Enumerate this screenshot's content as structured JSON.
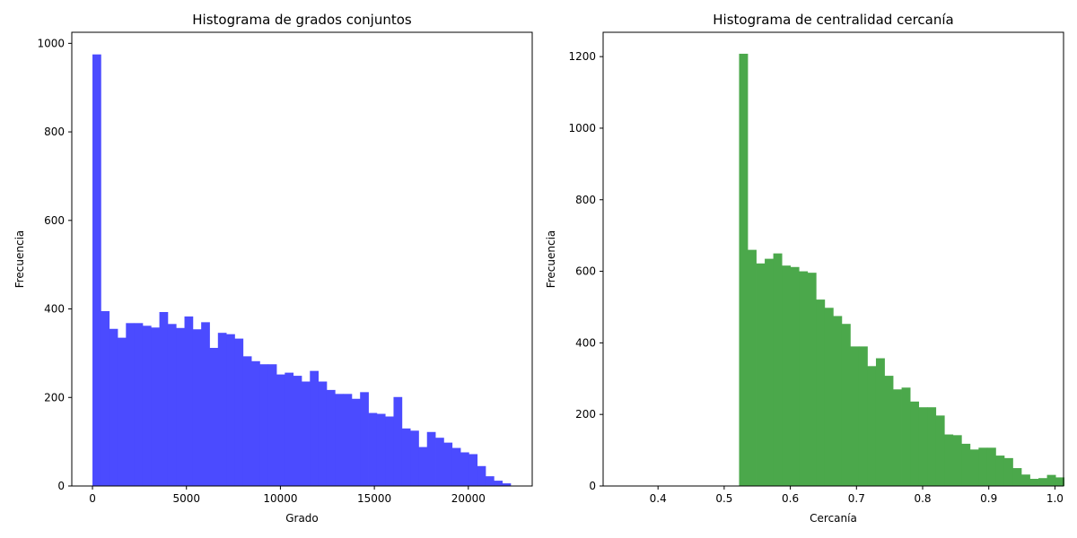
{
  "chart_data": [
    {
      "type": "bar",
      "title": "Histograma de grados conjuntos",
      "xlabel": "Grado",
      "ylabel": "Frecuencia",
      "color": "#4b4bff",
      "xlim": [
        -1100,
        23400
      ],
      "ylim": [
        0,
        1025
      ],
      "xticks": [
        0,
        5000,
        10000,
        15000,
        20000
      ],
      "yticks": [
        0,
        200,
        400,
        600,
        800,
        1000
      ],
      "bin_start": 0,
      "bin_width": 445,
      "values": [
        975,
        395,
        355,
        335,
        368,
        368,
        362,
        358,
        393,
        366,
        357,
        383,
        354,
        370,
        312,
        346,
        343,
        333,
        293,
        282,
        275,
        275,
        252,
        256,
        249,
        236,
        260,
        236,
        217,
        208,
        208,
        197,
        212,
        165,
        163,
        157,
        201,
        130,
        125,
        88,
        122,
        109,
        98,
        86,
        76,
        72,
        45,
        22,
        12,
        6
      ],
      "grid": false
    },
    {
      "type": "bar",
      "title": "Histograma de centralidad cercanía",
      "xlabel": "Cercanía",
      "ylabel": "Frecuencia",
      "color": "#4ba84b",
      "xlim": [
        0.317,
        1.013
      ],
      "ylim": [
        0,
        1268
      ],
      "xticks": [
        0.4,
        0.5,
        0.6,
        0.7,
        0.8,
        0.9,
        1.0
      ],
      "xtick_labels": [
        "0.4",
        "0.5",
        "0.6",
        "0.7",
        "0.8",
        "0.9",
        "1.0"
      ],
      "yticks": [
        0,
        200,
        400,
        600,
        800,
        1000,
        1200
      ],
      "bin_start": 0.3415,
      "bin_width": 0.01293,
      "values": [
        1,
        0,
        0,
        0,
        0,
        0,
        0,
        0,
        0,
        0,
        0,
        1,
        1,
        0,
        1208,
        660,
        622,
        635,
        650,
        616,
        612,
        600,
        596,
        521,
        498,
        475,
        453,
        390,
        390,
        335,
        357,
        308,
        270,
        275,
        236,
        220,
        220,
        197,
        144,
        142,
        118,
        102,
        107,
        107,
        85,
        78,
        50,
        32,
        20,
        22,
        31,
        24
      ],
      "grid": false
    }
  ]
}
